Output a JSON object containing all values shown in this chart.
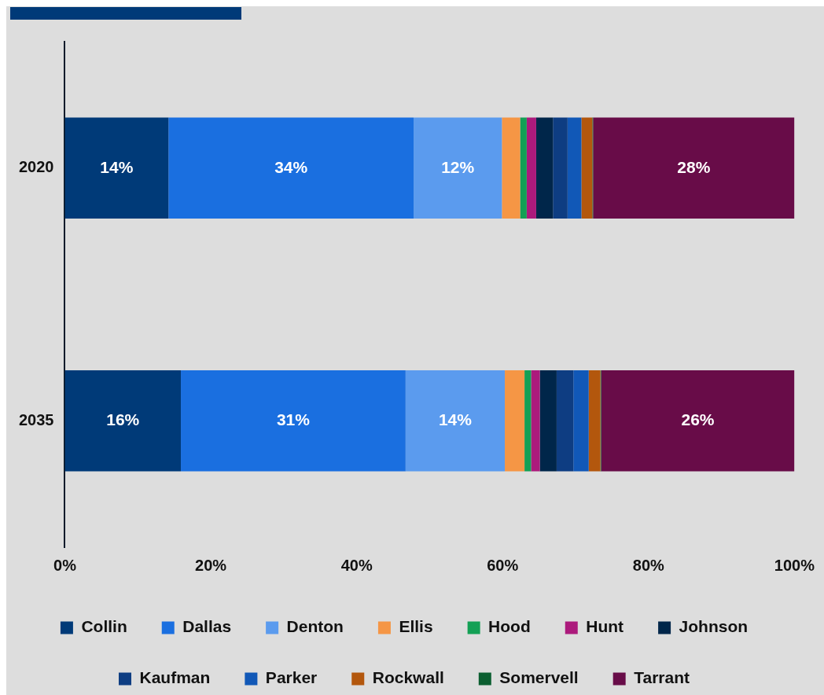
{
  "chart_data": {
    "type": "bar",
    "orientation": "horizontal",
    "stacked": true,
    "categories": [
      "2020",
      "2035"
    ],
    "xlim": [
      0,
      100
    ],
    "xticks": [
      {
        "value": 0,
        "label": "0%"
      },
      {
        "value": 20,
        "label": "20%"
      },
      {
        "value": 40,
        "label": "40%"
      },
      {
        "value": 60,
        "label": "60%"
      },
      {
        "value": 80,
        "label": "80%"
      },
      {
        "value": 100,
        "label": "100%"
      }
    ],
    "grid": false,
    "legend": "bottom",
    "series": [
      {
        "name": "Collin",
        "color": "#003a78",
        "values": [
          14.2,
          15.9
        ],
        "value_labels": [
          "14%",
          "16%"
        ]
      },
      {
        "name": "Dallas",
        "color": "#1a6fe0",
        "values": [
          33.6,
          30.8
        ],
        "value_labels": [
          "34%",
          "31%"
        ]
      },
      {
        "name": "Denton",
        "color": "#5b9bee",
        "values": [
          12.1,
          13.6
        ],
        "value_labels": [
          "12%",
          "14%"
        ]
      },
      {
        "name": "Ellis",
        "color": "#f59645",
        "values": [
          2.5,
          2.7
        ],
        "value_labels": [
          null,
          null
        ]
      },
      {
        "name": "Hood",
        "color": "#13a055",
        "values": [
          0.9,
          0.9
        ],
        "value_labels": [
          null,
          null
        ]
      },
      {
        "name": "Hunt",
        "color": "#ac1a7c",
        "values": [
          1.3,
          1.2
        ],
        "value_labels": [
          null,
          null
        ]
      },
      {
        "name": "Johnson",
        "color": "#00264a",
        "values": [
          2.3,
          2.3
        ],
        "value_labels": [
          null,
          null
        ]
      },
      {
        "name": "Kaufman",
        "color": "#0e3d82",
        "values": [
          2.0,
          2.3
        ],
        "value_labels": [
          null,
          null
        ]
      },
      {
        "name": "Parker",
        "color": "#1158b7",
        "values": [
          1.9,
          2.1
        ],
        "value_labels": [
          null,
          null
        ]
      },
      {
        "name": "Rockwall",
        "color": "#b3570d",
        "values": [
          1.5,
          1.6
        ],
        "value_labels": [
          null,
          null
        ]
      },
      {
        "name": "Somervell",
        "color": "#0b5e30",
        "values": [
          0.1,
          0.1
        ],
        "value_labels": [
          null,
          null
        ]
      },
      {
        "name": "Tarrant",
        "color": "#680c48",
        "values": [
          27.6,
          26.5
        ],
        "value_labels": [
          "28%",
          "26%"
        ]
      }
    ]
  }
}
